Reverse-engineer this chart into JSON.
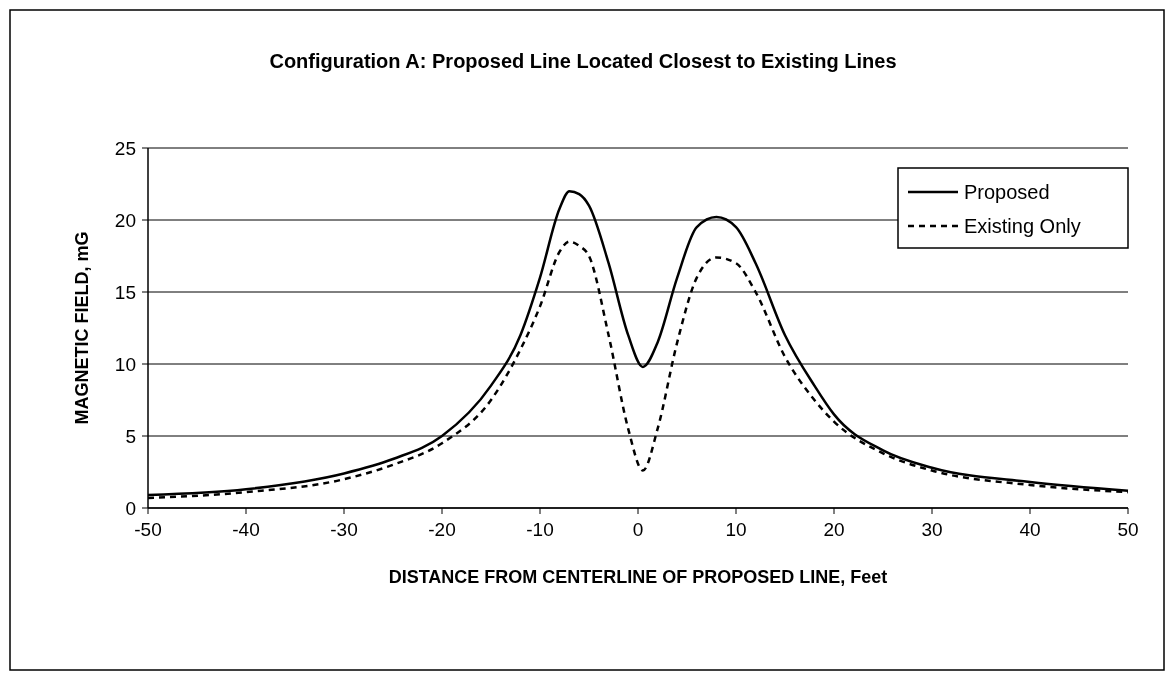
{
  "chart_data": {
    "type": "line",
    "title": "Configuration A: Proposed Line Located Closest to Existing Lines",
    "xlabel": "DISTANCE FROM CENTERLINE OF PROPOSED LINE, Feet",
    "ylabel": "MAGNETIC FIELD, mG",
    "xlim": [
      -50,
      50
    ],
    "xticks": [
      -50,
      -40,
      -30,
      -20,
      -10,
      0,
      10,
      20,
      30,
      40,
      50
    ],
    "ylim": [
      0,
      25
    ],
    "yticks": [
      0,
      5,
      10,
      15,
      20,
      25
    ],
    "grid": "y",
    "legend": "top right",
    "marker": "none",
    "series": [
      {
        "name": "Proposed",
        "color": "#000000",
        "line_style": "solid",
        "x": [
          -50,
          -40,
          -30,
          -25,
          -20,
          -15,
          -12,
          -10,
          -8,
          -7,
          -6,
          -5,
          -3,
          -1,
          0.5,
          2,
          4,
          6,
          8,
          10,
          12,
          15,
          18,
          20,
          25,
          30,
          40,
          50
        ],
        "values": [
          0.9,
          1.3,
          2.4,
          3.4,
          5,
          8.5,
          12,
          16,
          20.8,
          22,
          21.8,
          21,
          17,
          12,
          9.8,
          11.5,
          16,
          19.5,
          20.2,
          19.5,
          17,
          12,
          8.5,
          6.5,
          4,
          2.8,
          1.8,
          1.2
        ]
      },
      {
        "name": "Existing Only",
        "color": "#000000",
        "line_style": "dashed",
        "x": [
          -50,
          -40,
          -30,
          -25,
          -20,
          -15,
          -12,
          -10,
          -8,
          -7,
          -6,
          -5,
          -3,
          -1,
          0.5,
          2,
          4,
          6,
          8,
          10,
          12,
          15,
          18,
          20,
          25,
          30,
          40,
          50
        ],
        "values": [
          0.7,
          1.1,
          2,
          3,
          4.5,
          7.5,
          11,
          14,
          17.8,
          18.5,
          18.2,
          17.5,
          12,
          5.5,
          2.6,
          5.5,
          11.5,
          16,
          17.4,
          17,
          15,
          10.5,
          7.5,
          6,
          3.8,
          2.6,
          1.6,
          1.1
        ]
      }
    ]
  }
}
